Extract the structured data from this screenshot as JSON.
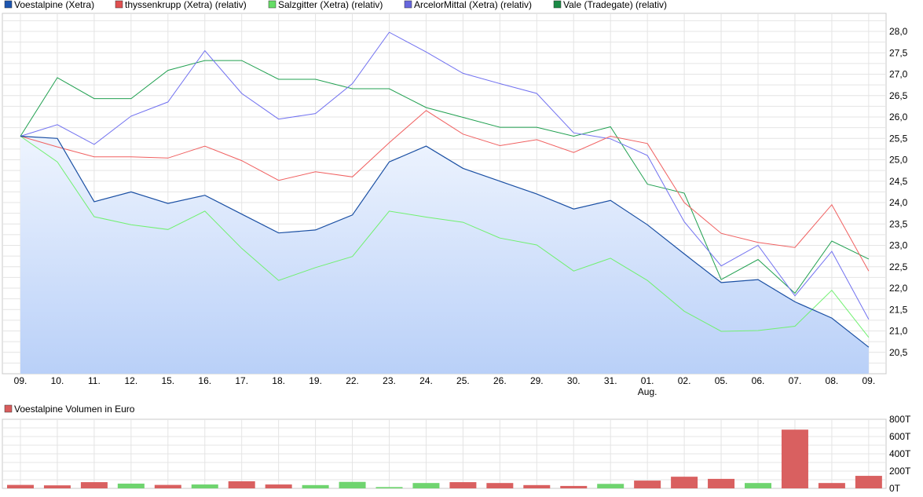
{
  "chart_data": [
    {
      "type": "line",
      "x": [
        "09.",
        "10.",
        "11.",
        "12.",
        "15.",
        "16.",
        "17.",
        "18.",
        "19.",
        "22.",
        "23.",
        "24.",
        "25.",
        "26.",
        "29.",
        "30.",
        "31.",
        "01.",
        "02.",
        "05.",
        "06.",
        "07.",
        "08.",
        "09."
      ],
      "x_sublabels": [
        {
          "index": 17,
          "text": "Aug."
        }
      ],
      "y_ticks": [
        "20,5",
        "21,0",
        "21,5",
        "22,0",
        "22,5",
        "23,0",
        "23,5",
        "24,0",
        "24,5",
        "25,0",
        "25,5",
        "26,0",
        "26,5",
        "27,0",
        "27,5",
        "28,0"
      ],
      "ylim": [
        20.5,
        28.0
      ],
      "y_axis_side": "right",
      "grid": true,
      "legend_position": "top",
      "series": [
        {
          "name": "Voestalpine (Xetra)",
          "color": "#1a4fa3",
          "legend_color": "#1c55b0",
          "fill": true,
          "values": [
            25.55,
            25.5,
            24.02,
            24.25,
            23.98,
            24.17,
            23.73,
            23.29,
            23.36,
            23.71,
            24.95,
            25.32,
            24.8,
            24.5,
            24.2,
            23.85,
            24.05,
            23.48,
            22.8,
            22.13,
            22.2,
            21.68,
            21.3,
            20.62
          ]
        },
        {
          "name": "thyssenkrupp (Xetra) (relativ)",
          "color": "#f06060",
          "legend_color": "#e05050",
          "values": [
            25.55,
            25.3,
            25.07,
            25.07,
            25.04,
            25.32,
            24.98,
            24.52,
            24.72,
            24.6,
            25.4,
            26.15,
            25.6,
            25.33,
            25.47,
            25.17,
            25.55,
            25.38,
            24.0,
            23.28,
            23.07,
            22.95,
            23.95,
            22.4
          ]
        },
        {
          "name": "Salzgitter (Xetra) (relativ)",
          "color": "#70f070",
          "legend_color": "#66dd66",
          "values": [
            25.55,
            24.95,
            23.67,
            23.48,
            23.37,
            23.8,
            22.93,
            22.18,
            22.48,
            22.74,
            23.8,
            23.66,
            23.54,
            23.17,
            23.01,
            22.4,
            22.7,
            22.18,
            21.46,
            20.99,
            21.01,
            21.11,
            21.95,
            20.85
          ]
        },
        {
          "name": "ArcelorMittal (Xetra) (relativ)",
          "color": "#7070f0",
          "legend_color": "#6666dd",
          "values": [
            25.55,
            25.82,
            25.36,
            26.02,
            26.35,
            27.55,
            26.55,
            25.95,
            26.08,
            26.78,
            27.98,
            27.52,
            27.02,
            26.78,
            26.55,
            25.63,
            25.49,
            25.1,
            23.55,
            22.52,
            23.0,
            21.82,
            22.86,
            21.27
          ]
        },
        {
          "name": "Vale (Tradegate) (relativ)",
          "color": "#20a050",
          "legend_color": "#1a8a45",
          "values": [
            25.55,
            26.92,
            26.43,
            26.43,
            27.09,
            27.32,
            27.32,
            26.88,
            26.88,
            26.66,
            26.66,
            26.22,
            25.99,
            25.76,
            25.76,
            25.55,
            25.77,
            24.43,
            24.22,
            22.2,
            22.67,
            21.88,
            23.1,
            22.68
          ]
        }
      ]
    },
    {
      "type": "bar",
      "series_name": "Voestalpine Volumen in Euro",
      "legend_color": "#d95c5c",
      "y_ticks": [
        "0T",
        "200T",
        "400T",
        "600T",
        "800T"
      ],
      "ylim": [
        0,
        800
      ],
      "y_axis_side": "right",
      "grid": true,
      "up_color": "#6fd46f",
      "down_color": "#d96060",
      "values": [
        40,
        35,
        72,
        55,
        40,
        45,
        82,
        45,
        38,
        75,
        15,
        62,
        72,
        62,
        38,
        28,
        52,
        90,
        135,
        110,
        62,
        680,
        62,
        145
      ],
      "direction": [
        "down",
        "down",
        "down",
        "up",
        "down",
        "up",
        "down",
        "down",
        "up",
        "up",
        "up",
        "up",
        "down",
        "down",
        "down",
        "down",
        "up",
        "down",
        "down",
        "down",
        "up",
        "down",
        "down",
        "down"
      ]
    }
  ]
}
